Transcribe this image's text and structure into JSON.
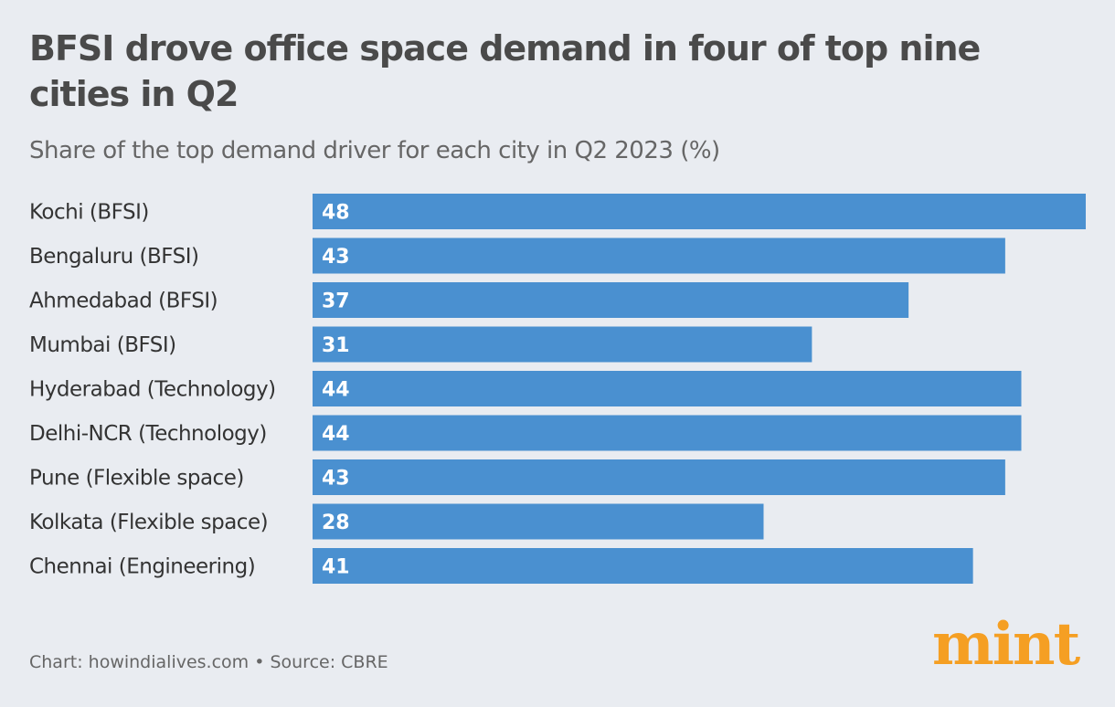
{
  "title": "BFSI drove office space demand in four of top nine cities in Q2",
  "subtitle": "Share of the top demand driver for each city in Q2 2023 (%)",
  "source": "Chart: howindialives.com • Source: CBRE",
  "logo": "mint",
  "colors": {
    "bar": "#4a90d0",
    "background": "#e9ecf1",
    "logo": "#f59f23",
    "label": "#ffffff"
  },
  "chart_data": {
    "type": "bar",
    "orientation": "horizontal",
    "categories": [
      "Kochi (BFSI)",
      "Bengaluru (BFSI)",
      "Ahmedabad (BFSI)",
      "Mumbai (BFSI)",
      "Hyderabad (Technology)",
      "Delhi-NCR (Technology)",
      "Pune (Flexible space)",
      "Kolkata (Flexible space)",
      "Chennai (Engineering)"
    ],
    "values": [
      48,
      43,
      37,
      31,
      44,
      44,
      43,
      28,
      41
    ],
    "xlim": [
      0,
      48
    ],
    "grid": false,
    "data_labels": true
  }
}
